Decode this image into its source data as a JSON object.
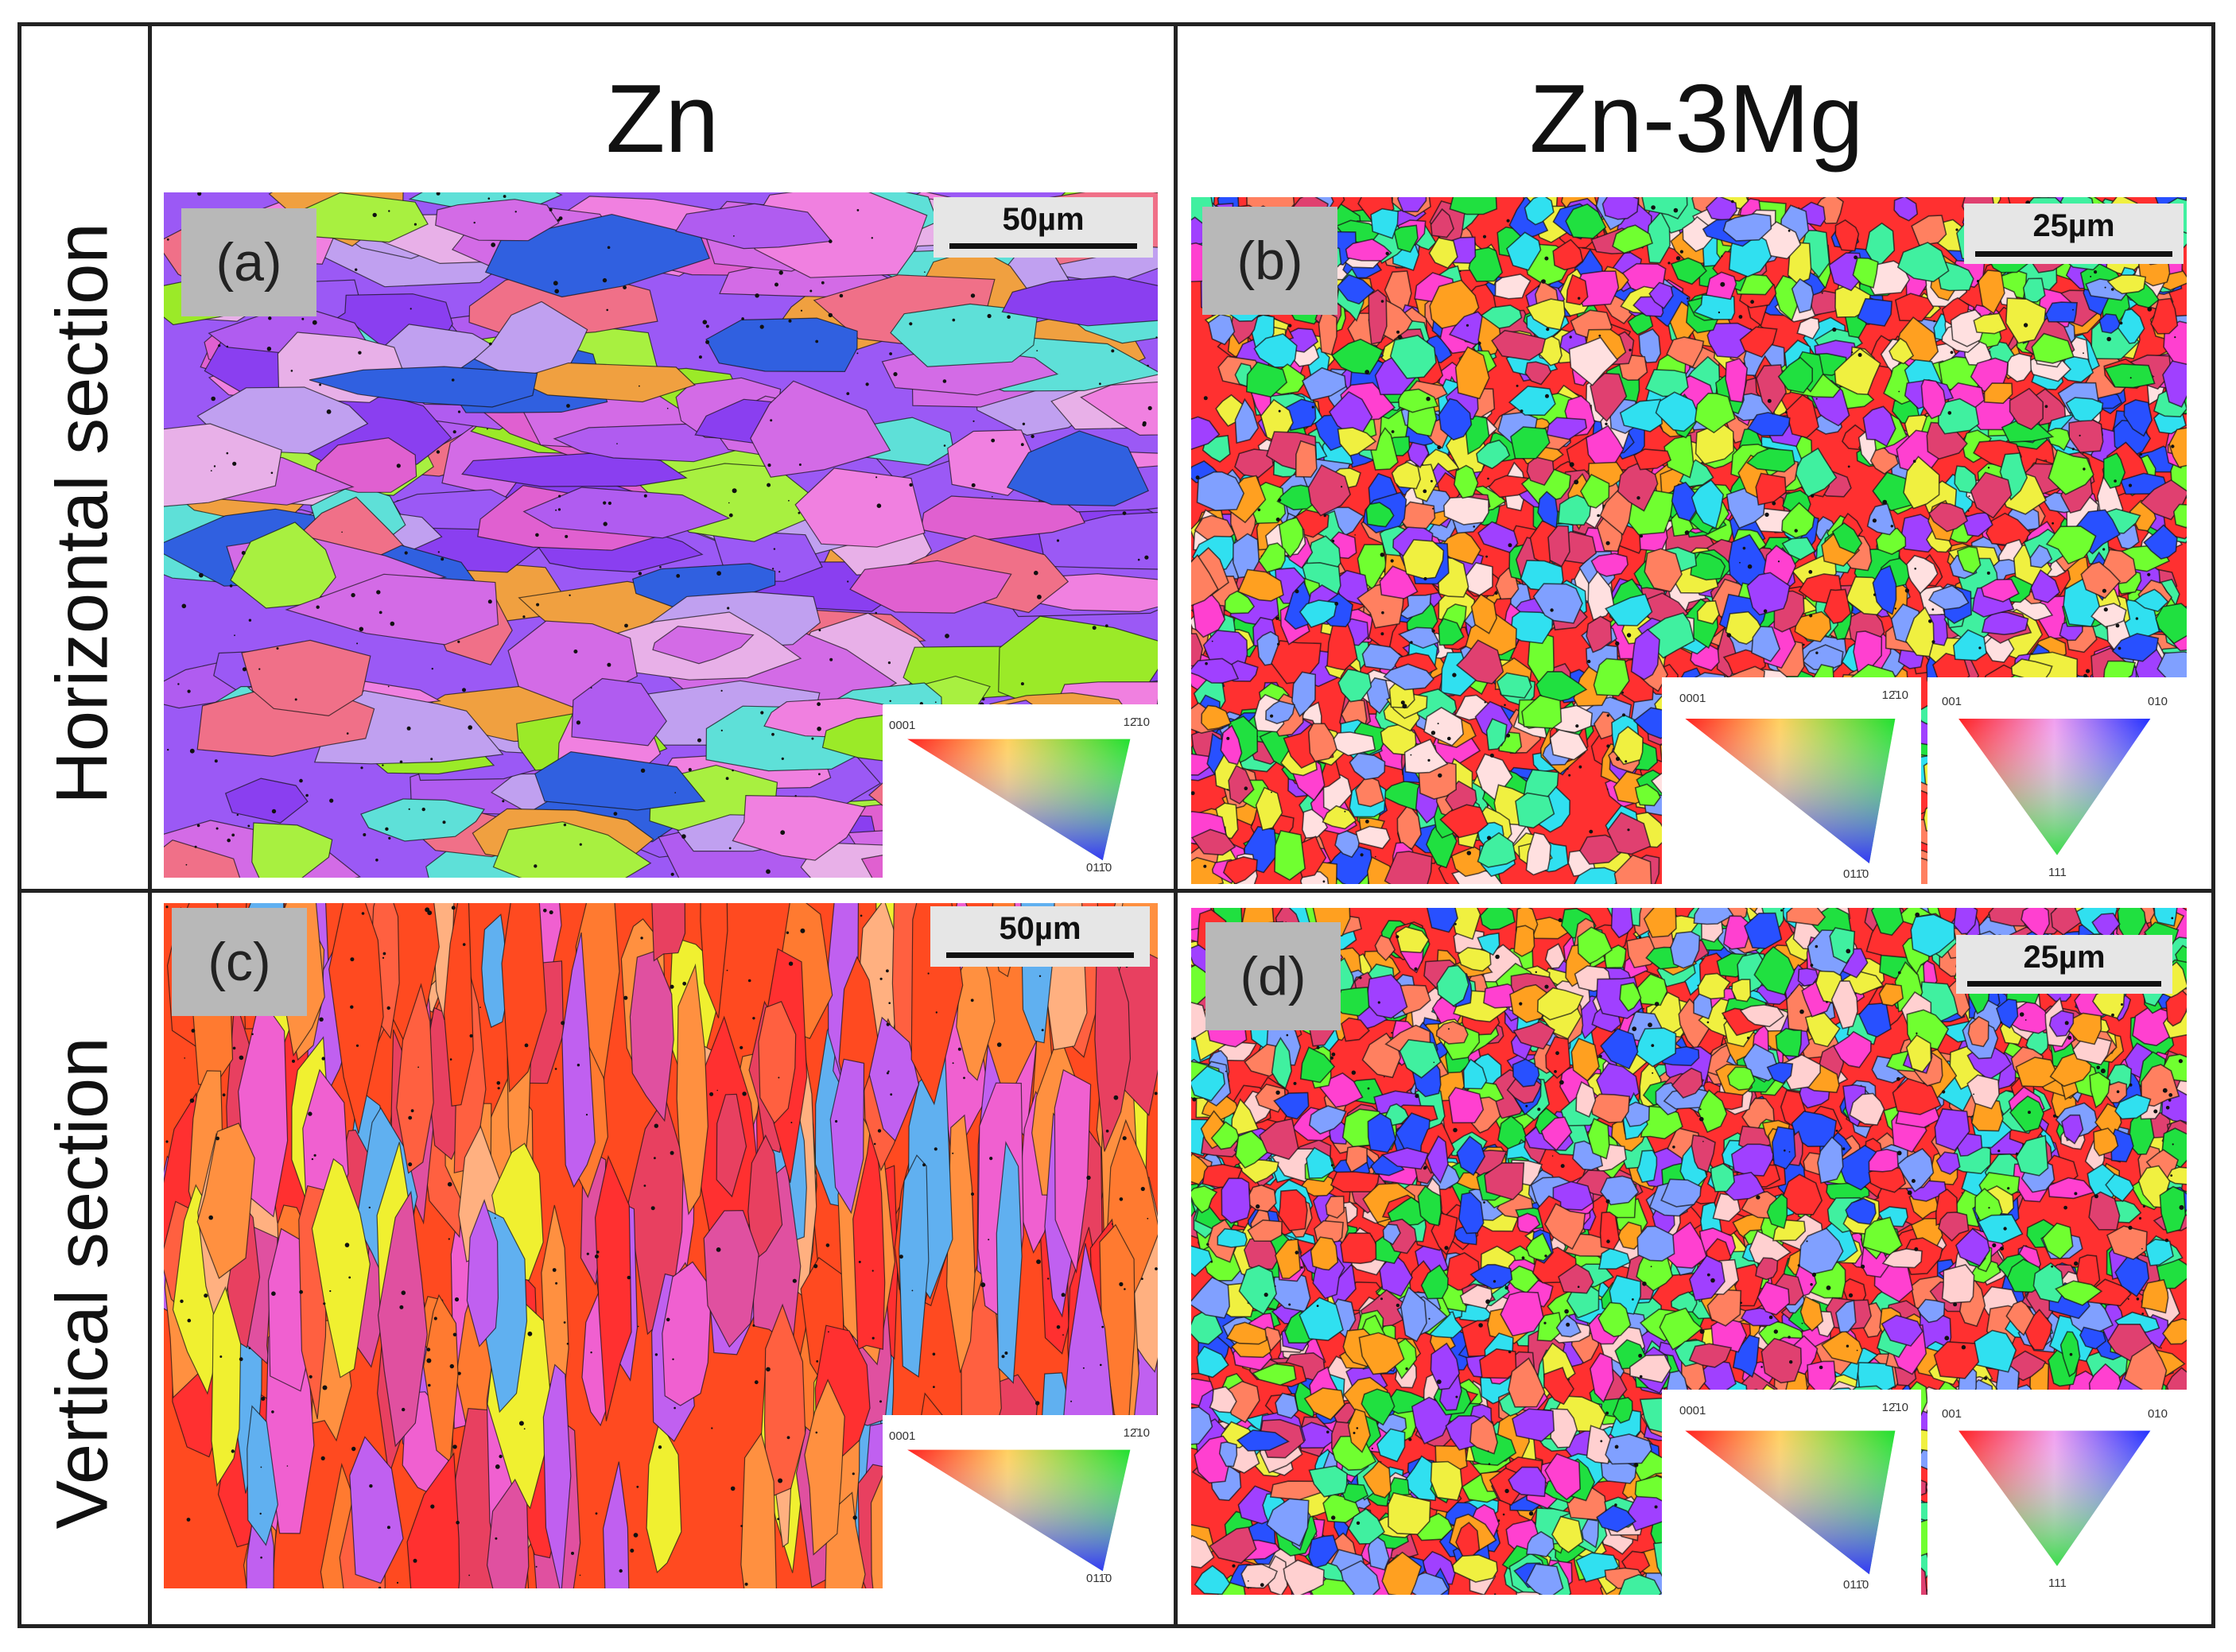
{
  "columns": [
    {
      "title": "Zn"
    },
    {
      "title": "Zn-3Mg"
    }
  ],
  "rows": [
    {
      "title": "Horizontal  section"
    },
    {
      "title": "Vertical  section"
    }
  ],
  "panels": [
    {
      "label": "(a)",
      "scale": "50µm",
      "palette": [
        "#9b59f5",
        "#b05cf0",
        "#d36be6",
        "#8a3ff0",
        "#e060d0",
        "#9bea28",
        "#a8f040",
        "#5ee0d8",
        "#f07088",
        "#f0a040",
        "#e8b0e8",
        "#3060e0",
        "#f080e0",
        "#c0a0f0"
      ]
    },
    {
      "label": "(b)",
      "scale": "25µm",
      "palette": [
        "#ff3030",
        "#20e040",
        "#40f0a0",
        "#2850ff",
        "#ff40d0",
        "#ffa020",
        "#a040ff",
        "#30e0f0",
        "#f0f040",
        "#ff8060",
        "#70ff30",
        "#e04070",
        "#80a0ff",
        "#ffe0e0"
      ]
    },
    {
      "label": "(c)",
      "scale": "50µm",
      "palette": [
        "#ff4a20",
        "#ff7a30",
        "#ff3030",
        "#e84060",
        "#f060d0",
        "#c060f0",
        "#ff9040",
        "#f0f030",
        "#60b0f0",
        "#e050a0",
        "#ff6040",
        "#ffb080"
      ]
    },
    {
      "label": "(d)",
      "scale": "25µm",
      "palette": [
        "#ff3030",
        "#20e040",
        "#40f0a0",
        "#2850ff",
        "#ff40d0",
        "#ffa020",
        "#a040ff",
        "#30e0f0",
        "#f0f040",
        "#ff8060",
        "#70ff30",
        "#e04070",
        "#80a0ff",
        "#ffd0d0"
      ]
    }
  ],
  "legend": {
    "hcp": {
      "top_left": "0001",
      "top_right": "12̄10",
      "bottom": "011̄0"
    },
    "cubic": {
      "top_left": "001",
      "top_right": "010",
      "bottom": "111"
    }
  },
  "colors": {
    "frame": "#222222",
    "label_box": "#b8b8b8",
    "scale_box": "#e6e6e6"
  }
}
